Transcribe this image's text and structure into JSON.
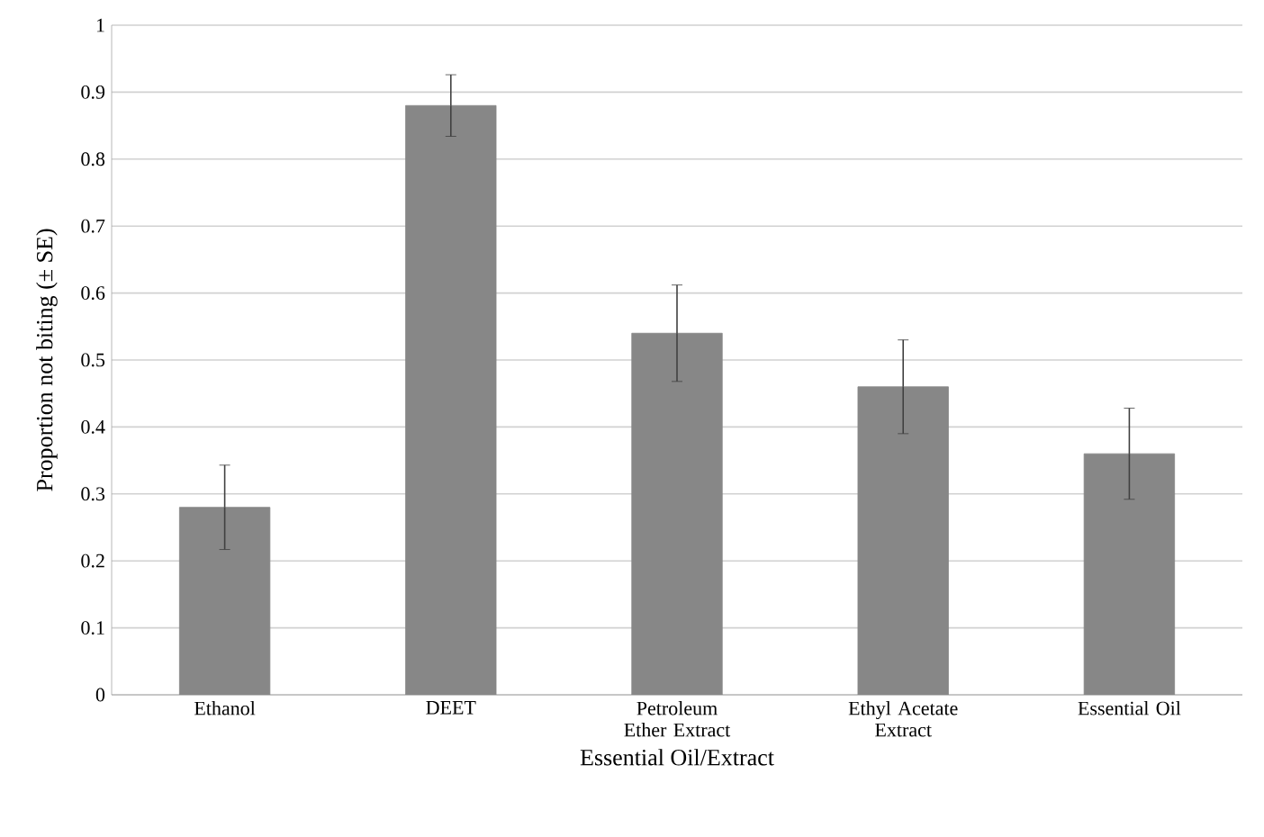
{
  "chart_data": {
    "type": "bar",
    "xlabel": "Essential Oil/Extract",
    "ylabel": "Proportion not biting (± SE)",
    "categories": [
      "Ethanol",
      "DEET",
      "Petroleum Ether Extract",
      "Ethyl Acetate Extract",
      "Essential Oil"
    ],
    "values": [
      0.28,
      0.88,
      0.54,
      0.46,
      0.36
    ],
    "errors": [
      0.063,
      0.046,
      0.072,
      0.07,
      0.068
    ],
    "color": "#878787",
    "ylim": [
      0,
      1
    ],
    "yticks": [
      0,
      0.1,
      0.2,
      0.3,
      0.4,
      0.5,
      0.6,
      0.7,
      0.8,
      0.9,
      1
    ],
    "grid": "y"
  }
}
